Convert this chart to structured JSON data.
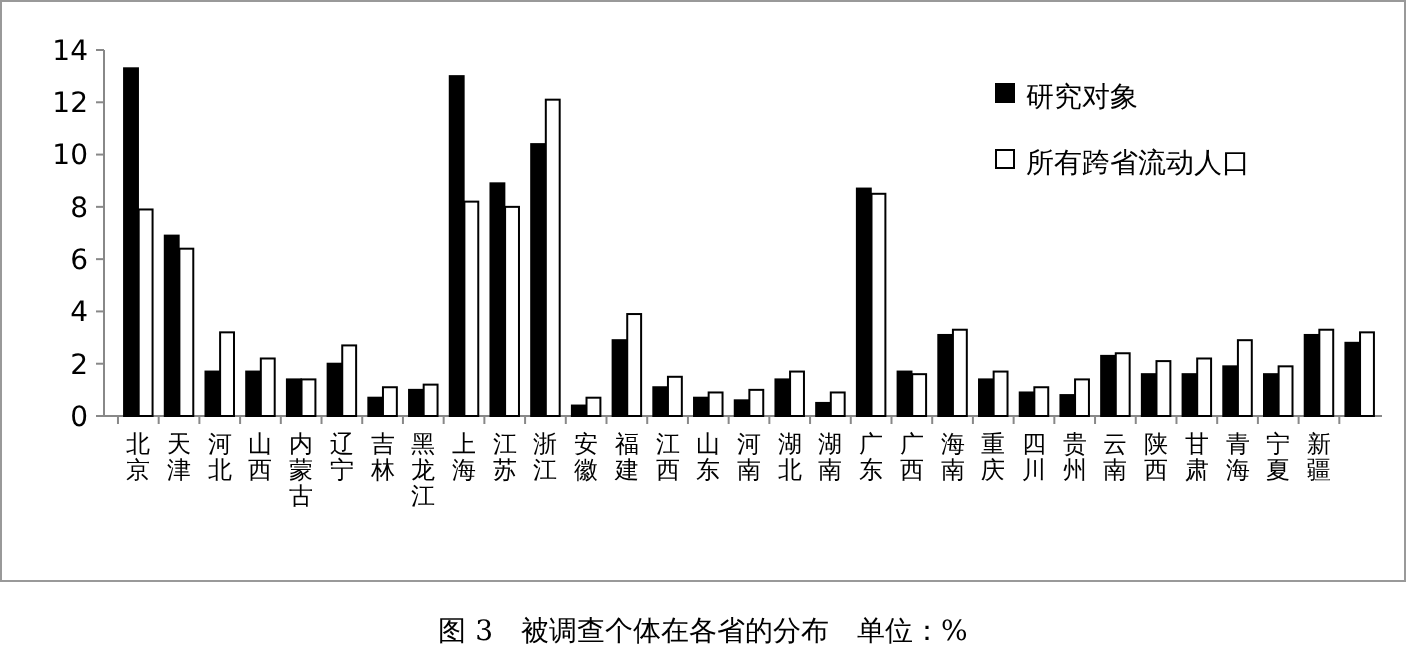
{
  "chart_data": {
    "type": "bar",
    "title": "图 3　被调查个体在各省的分布　单位：%",
    "categories": [
      "北京",
      "天津",
      "河北",
      "山西",
      "内蒙古",
      "辽宁",
      "吉林",
      "黑龙江",
      "上海",
      "江苏",
      "浙江",
      "安徽",
      "福建",
      "江西",
      "山东",
      "河南",
      "湖北",
      "湖南",
      "广东",
      "广西",
      "海南",
      "重庆",
      "四川",
      "贵州",
      "云南",
      "陕西",
      "甘肃",
      "青海",
      "宁夏",
      "新疆",
      null
    ],
    "series": [
      {
        "name": "研究对象",
        "color": "#000000",
        "values": [
          13.3,
          6.9,
          1.7,
          1.7,
          1.4,
          2.0,
          0.7,
          1.0,
          13.0,
          8.9,
          10.4,
          0.4,
          2.9,
          1.1,
          0.7,
          0.6,
          1.4,
          0.5,
          8.7,
          1.7,
          3.1,
          1.4,
          0.9,
          0.8,
          2.3,
          1.6,
          1.6,
          1.9,
          1.6,
          3.1,
          2.8
        ]
      },
      {
        "name": "所有跨省流动人口",
        "color": "#ffffff",
        "values": [
          7.9,
          6.4,
          3.2,
          2.2,
          1.4,
          2.7,
          1.1,
          1.2,
          8.2,
          8.0,
          12.1,
          0.7,
          3.9,
          1.5,
          0.9,
          1.0,
          1.7,
          0.9,
          8.5,
          1.6,
          3.3,
          1.7,
          1.1,
          1.4,
          2.4,
          2.1,
          2.2,
          2.9,
          1.9,
          3.3,
          3.2
        ]
      }
    ],
    "ylim": [
      0,
      14
    ],
    "yticks": [
      0,
      2,
      4,
      6,
      8,
      10,
      12,
      14
    ],
    "legend": "top right"
  }
}
